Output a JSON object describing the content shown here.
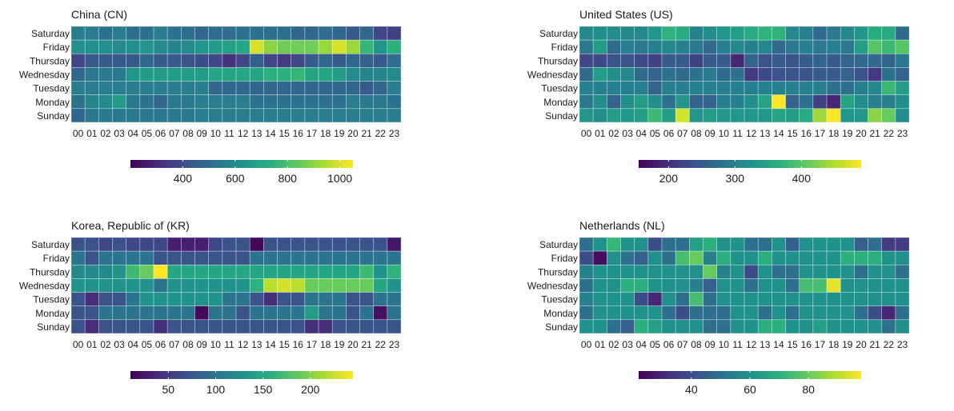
{
  "chart_data": [
    {
      "type": "heatmap",
      "title": "China (CN)",
      "rows": [
        "Saturday",
        "Friday",
        "Thursday",
        "Wednesday",
        "Tuesday",
        "Monday",
        "Sunday"
      ],
      "columns": [
        "00",
        "01",
        "02",
        "03",
        "04",
        "05",
        "06",
        "07",
        "08",
        "09",
        "10",
        "11",
        "12",
        "13",
        "14",
        "15",
        "16",
        "17",
        "18",
        "19",
        "20",
        "21",
        "22",
        "23"
      ],
      "values": [
        [
          560,
          560,
          520,
          560,
          520,
          520,
          560,
          520,
          520,
          480,
          500,
          500,
          520,
          520,
          520,
          520,
          480,
          480,
          500,
          480,
          440,
          480,
          380,
          360
        ],
        [
          620,
          620,
          620,
          600,
          620,
          640,
          600,
          580,
          600,
          640,
          660,
          680,
          700,
          1000,
          900,
          860,
          860,
          860,
          920,
          1000,
          920,
          760,
          640,
          740
        ],
        [
          380,
          440,
          440,
          440,
          440,
          480,
          440,
          440,
          420,
          400,
          380,
          320,
          380,
          460,
          380,
          340,
          380,
          440,
          480,
          440,
          480,
          460,
          440,
          500
        ],
        [
          480,
          540,
          540,
          540,
          640,
          660,
          660,
          660,
          660,
          660,
          700,
          700,
          700,
          700,
          740,
          740,
          760,
          700,
          700,
          660,
          600,
          580,
          580,
          600
        ],
        [
          560,
          560,
          560,
          560,
          560,
          560,
          560,
          560,
          560,
          560,
          480,
          480,
          480,
          480,
          480,
          480,
          480,
          480,
          480,
          480,
          480,
          440,
          480,
          560
        ],
        [
          520,
          580,
          600,
          660,
          540,
          520,
          480,
          540,
          540,
          560,
          560,
          560,
          560,
          520,
          520,
          520,
          520,
          520,
          520,
          520,
          560,
          540,
          540,
          520
        ],
        [
          480,
          540,
          540,
          540,
          540,
          540,
          540,
          540,
          540,
          560,
          560,
          560,
          560,
          560,
          560,
          560,
          560,
          560,
          560,
          560,
          560,
          560,
          560,
          560
        ]
      ],
      "color_range": [
        200,
        1050
      ],
      "colorbar_ticks": [
        400,
        600,
        800,
        1000
      ]
    },
    {
      "type": "heatmap",
      "title": "United States (US)",
      "rows": [
        "Saturday",
        "Friday",
        "Thursday",
        "Wednesday",
        "Tuesday",
        "Monday",
        "Sunday"
      ],
      "columns": [
        "00",
        "01",
        "02",
        "03",
        "04",
        "05",
        "06",
        "07",
        "08",
        "09",
        "10",
        "11",
        "12",
        "13",
        "14",
        "15",
        "16",
        "17",
        "18",
        "19",
        "20",
        "21",
        "22",
        "23"
      ],
      "values": [
        [
          310,
          320,
          320,
          310,
          310,
          330,
          370,
          360,
          300,
          320,
          330,
          340,
          360,
          370,
          370,
          310,
          300,
          270,
          290,
          310,
          330,
          360,
          360,
          270
        ],
        [
          290,
          340,
          270,
          300,
          290,
          300,
          310,
          300,
          290,
          270,
          300,
          310,
          300,
          310,
          270,
          290,
          300,
          290,
          300,
          290,
          340,
          400,
          380,
          400
        ],
        [
          230,
          230,
          240,
          240,
          230,
          220,
          250,
          250,
          220,
          250,
          250,
          190,
          260,
          240,
          250,
          240,
          250,
          260,
          250,
          260,
          270,
          270,
          260,
          290
        ],
        [
          270,
          340,
          320,
          310,
          270,
          260,
          280,
          270,
          280,
          290,
          270,
          280,
          210,
          230,
          240,
          240,
          240,
          250,
          250,
          260,
          240,
          210,
          280,
          260
        ],
        [
          300,
          300,
          300,
          300,
          300,
          260,
          300,
          300,
          300,
          300,
          300,
          300,
          300,
          300,
          300,
          300,
          300,
          300,
          280,
          280,
          300,
          310,
          380,
          340
        ],
        [
          290,
          320,
          260,
          320,
          340,
          320,
          280,
          330,
          260,
          260,
          300,
          300,
          320,
          350,
          490,
          260,
          280,
          220,
          190,
          350,
          320,
          300,
          300,
          320
        ],
        [
          330,
          320,
          340,
          330,
          340,
          380,
          340,
          470,
          330,
          340,
          330,
          330,
          330,
          330,
          350,
          340,
          360,
          440,
          490,
          330,
          330,
          430,
          410,
          320
        ]
      ],
      "color_range": [
        155,
        490
      ],
      "colorbar_ticks": [
        200,
        300,
        400
      ]
    },
    {
      "type": "heatmap",
      "title": "Korea, Republic of (KR)",
      "rows": [
        "Saturday",
        "Friday",
        "Thursday",
        "Wednesday",
        "Tuesday",
        "Monday",
        "Sunday"
      ],
      "columns": [
        "00",
        "01",
        "02",
        "03",
        "04",
        "05",
        "06",
        "07",
        "08",
        "09",
        "10",
        "11",
        "12",
        "13",
        "14",
        "15",
        "16",
        "17",
        "18",
        "19",
        "20",
        "21",
        "22",
        "23"
      ],
      "values": [
        [
          70,
          70,
          60,
          70,
          60,
          60,
          60,
          30,
          30,
          30,
          60,
          70,
          70,
          15,
          70,
          70,
          70,
          70,
          70,
          70,
          70,
          70,
          70,
          25
        ],
        [
          100,
          70,
          100,
          100,
          100,
          100,
          70,
          70,
          70,
          70,
          70,
          70,
          70,
          100,
          100,
          100,
          100,
          100,
          100,
          100,
          100,
          100,
          100,
          100
        ],
        [
          120,
          120,
          120,
          130,
          170,
          190,
          245,
          150,
          150,
          150,
          150,
          150,
          150,
          150,
          150,
          150,
          150,
          150,
          150,
          150,
          150,
          170,
          130,
          160
        ],
        [
          130,
          130,
          130,
          130,
          130,
          130,
          100,
          130,
          130,
          130,
          130,
          130,
          130,
          160,
          220,
          230,
          220,
          190,
          190,
          190,
          190,
          190,
          150,
          130
        ],
        [
          70,
          40,
          70,
          70,
          100,
          130,
          130,
          130,
          130,
          130,
          130,
          100,
          100,
          70,
          40,
          70,
          70,
          100,
          100,
          100,
          70,
          70,
          100,
          100
        ],
        [
          70,
          70,
          100,
          100,
          100,
          100,
          100,
          100,
          100,
          15,
          100,
          100,
          70,
          100,
          100,
          100,
          100,
          140,
          100,
          100,
          70,
          100,
          20,
          100
        ],
        [
          70,
          40,
          70,
          70,
          70,
          70,
          40,
          70,
          70,
          70,
          70,
          70,
          70,
          70,
          70,
          70,
          70,
          40,
          40,
          70,
          70,
          70,
          70,
          70
        ]
      ],
      "color_range": [
        10,
        245
      ],
      "colorbar_ticks": [
        50,
        100,
        150,
        200
      ]
    },
    {
      "type": "heatmap",
      "title": "Netherlands (NL)",
      "rows": [
        "Saturday",
        "Friday",
        "Thursday",
        "Wednesday",
        "Tuesday",
        "Monday",
        "Sunday"
      ],
      "columns": [
        "00",
        "01",
        "02",
        "03",
        "04",
        "05",
        "06",
        "07",
        "08",
        "09",
        "10",
        "11",
        "12",
        "13",
        "14",
        "15",
        "16",
        "17",
        "18",
        "19",
        "20",
        "21",
        "22",
        "23"
      ],
      "values": [
        [
          50,
          60,
          72,
          60,
          60,
          40,
          50,
          50,
          65,
          70,
          60,
          60,
          50,
          50,
          60,
          45,
          60,
          60,
          60,
          60,
          45,
          50,
          35,
          35
        ],
        [
          40,
          25,
          60,
          50,
          45,
          60,
          50,
          75,
          80,
          55,
          70,
          60,
          60,
          70,
          60,
          60,
          60,
          60,
          60,
          70,
          70,
          70,
          60,
          60
        ],
        [
          55,
          60,
          60,
          60,
          60,
          60,
          60,
          60,
          60,
          80,
          55,
          60,
          40,
          60,
          50,
          50,
          60,
          60,
          60,
          60,
          50,
          60,
          60,
          50
        ],
        [
          50,
          60,
          60,
          70,
          70,
          60,
          60,
          60,
          55,
          45,
          60,
          60,
          50,
          60,
          60,
          50,
          75,
          75,
          95,
          60,
          60,
          60,
          60,
          60
        ],
        [
          55,
          60,
          60,
          60,
          40,
          30,
          60,
          50,
          75,
          50,
          60,
          60,
          60,
          60,
          60,
          60,
          60,
          60,
          60,
          60,
          60,
          60,
          60,
          60
        ],
        [
          50,
          60,
          60,
          60,
          60,
          60,
          50,
          40,
          50,
          50,
          50,
          60,
          60,
          50,
          60,
          50,
          60,
          60,
          60,
          60,
          50,
          40,
          30,
          50
        ],
        [
          60,
          60,
          50,
          45,
          70,
          65,
          60,
          60,
          60,
          50,
          50,
          60,
          60,
          70,
          70,
          60,
          60,
          65,
          60,
          60,
          60,
          60,
          50,
          60
        ]
      ],
      "color_range": [
        22,
        98
      ],
      "colorbar_ticks": [
        40,
        60,
        80
      ]
    }
  ]
}
